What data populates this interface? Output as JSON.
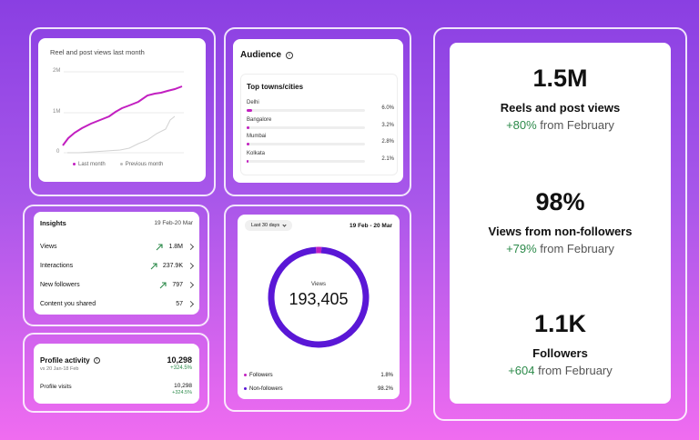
{
  "views_chart": {
    "title": "Reel and post views last month",
    "y_ticks": [
      "2M",
      "1M",
      "0"
    ],
    "legend": [
      "Last month",
      "Previous month"
    ],
    "colors": {
      "last": "#c21fc0",
      "previous": "#d2d2d2"
    }
  },
  "audience": {
    "title": "Audience",
    "info_icon": "info-icon",
    "subtitle": "Top towns/cities",
    "cities": [
      {
        "name": "Delhi",
        "pct": "6.0%",
        "value": 6.0
      },
      {
        "name": "Bangalore",
        "pct": "3.2%",
        "value": 3.2
      },
      {
        "name": "Mumbai",
        "pct": "2.8%",
        "value": 2.8
      },
      {
        "name": "Kolkata",
        "pct": "2.1%",
        "value": 2.1
      }
    ]
  },
  "insights": {
    "title": "Insights",
    "date": "19 Feb-20 Mar",
    "rows": [
      {
        "label": "Views",
        "value": "1.8M",
        "trend": true
      },
      {
        "label": "Interactions",
        "value": "237.9K",
        "trend": true
      },
      {
        "label": "New followers",
        "value": "797",
        "trend": true
      },
      {
        "label": "Content you shared",
        "value": "57",
        "trend": false
      }
    ]
  },
  "activity": {
    "title": "Profile activity",
    "compare": "vs 20 Jan-18 Feb",
    "total": "10,298",
    "total_change": "+324.5%",
    "visits_label": "Profile visits",
    "visits": "10,298",
    "visits_change": "+324.5%"
  },
  "donut": {
    "range_btn": "Last 30 days",
    "date": "19 Feb - 20 Mar",
    "center_label": "Views",
    "center_value": "193,405",
    "legend": [
      {
        "label": "Followers",
        "pct": "1.8%",
        "value": 1.8,
        "color": "#c21fc0"
      },
      {
        "label": "Non-followers",
        "pct": "98.2%",
        "value": 98.2,
        "color": "#5a17d6"
      }
    ]
  },
  "stats": [
    {
      "value": "1.5M",
      "label": "Reels and post views",
      "change": "+80%",
      "suffix": " from February"
    },
    {
      "value": "98%",
      "label": "Views from non-followers",
      "change": "+79%",
      "suffix": " from February"
    },
    {
      "value": "1.1K",
      "label": "Followers",
      "change": "+604",
      "suffix": " from February"
    }
  ]
}
